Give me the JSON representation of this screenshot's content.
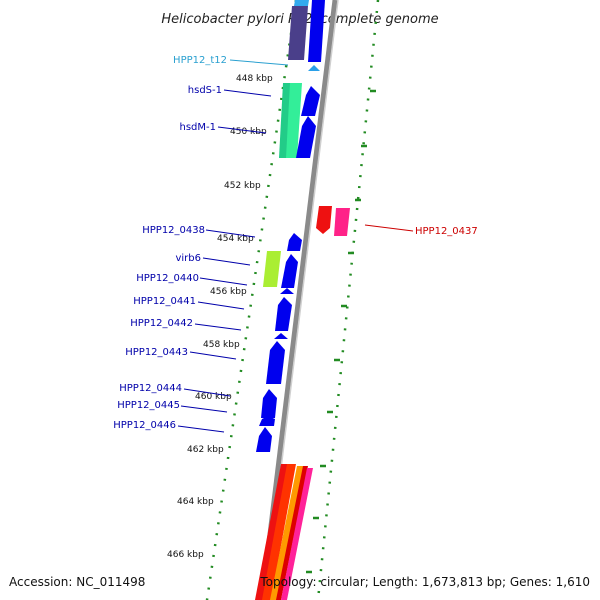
{
  "title": "Helicobacter pylori P12, complete genome",
  "footer": {
    "accession": "Accession: NC_011498",
    "topology": "Topology: circular; Length: 1,673,813 bp; Genes: 1,610"
  },
  "kbp_ticks": [
    "448 kbp",
    "450 kbp",
    "452 kbp",
    "454 kbp",
    "456 kbp",
    "458 kbp",
    "460 kbp",
    "462 kbp",
    "464 kbp",
    "466 kbp"
  ],
  "gene_labels": {
    "t12": "HPP12_t12",
    "hsdS1": "hsdS-1",
    "hsdM1": "hsdM-1",
    "g0438": "HPP12_0438",
    "virb6": "virb6",
    "g0440": "HPP12_0440",
    "g0441": "HPP12_0441",
    "g0442": "HPP12_0442",
    "g0443": "HPP12_0443",
    "g0444": "HPP12_0444",
    "g0445": "HPP12_0445",
    "g0446": "HPP12_0446",
    "g0437": "HPP12_0437"
  },
  "colors": {
    "label_blue": "#0000aa",
    "label_cyan": "#2aa0d0",
    "label_red": "#cc0000",
    "gene_blue": "#0000ee",
    "tick_green": "#228b22",
    "backbone": "#888888"
  }
}
